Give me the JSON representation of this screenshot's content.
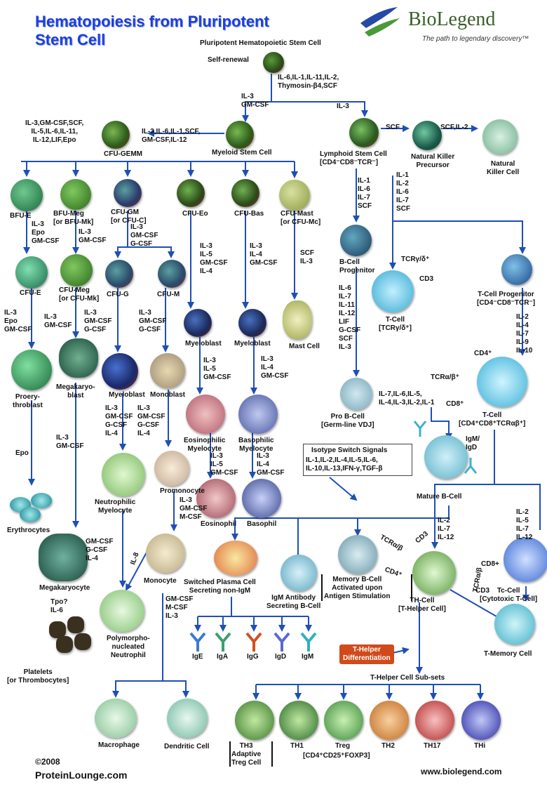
{
  "title": "Hematopoiesis from Pluripotent Stem Cell",
  "logo": {
    "name": "BioLegend",
    "tagline": "The path to legendary discovery™"
  },
  "footer": {
    "copyright": "©2008",
    "left": "ProteinLounge.com",
    "right": "www.biolegend.com"
  },
  "colors": {
    "arrow": "#1f4fb5",
    "title": "#1e3fd6"
  },
  "nodes": {
    "phsc": "Pluripotent Hematopoietic Stem Cell",
    "self_renewal": "Self-renewal",
    "cytokines_top": "IL-6,IL-1,IL-11,IL-2,\nThymosin-β4,SCF",
    "il3_gmcsf": "IL-3\nGM-CSF",
    "il3_right": "IL-3",
    "myeloid": "Myeloid Stem Cell",
    "myeloid_cyt": "IL-3,IL-6,IL-1,SCF,\nGM-CSF,IL-12",
    "cfugemm": "CFU-GEMM",
    "cfugemm_cyt": "IL-3,GM-CSF,SCF,\nIL-5,IL-6,IL-11,\nIL-12,LIF,Epo",
    "lymphoid": "Lymphoid Stem Cell\n[CD4⁻CD8⁻TCR⁻]",
    "scf": "SCF",
    "nk_precursor": "Natural Killer\nPrecursor",
    "scf_il2": "SCF,IL-2",
    "nk": "Natural\nKiller Cell",
    "bfue": "BFU-E",
    "bfue_cyt": "IL-3\nEpo\nGM-CSF",
    "bfumeg": "BFU-Meg\n[or BFU-Mk]",
    "bfumeg_cyt": "IL-3\nGM-CSF",
    "cfugm": "CFU-GM\n[or CFU-C]",
    "cfugm_cyt": "IL-3\nGM-CSF\nG-CSF",
    "cfueo": "CFU-Eo",
    "cfueo_cyt": "IL-3\nIL-5\nGM-CSF\nIL-4",
    "cfubas": "CFU-Bas",
    "cfubas_cyt": "IL-3\nIL-4\nGM-CSF",
    "cfumast": "CFU-Mast\n[or CFU-Mc]",
    "cfumast_cyt": "SCF\nIL-3",
    "lymph_cyt_left": "IL-1\nIL-6\nIL-7\nSCF",
    "lymph_cyt_right": "IL-1\nIL-2\nIL-6\nIL-7\nSCF",
    "cfue": "CFU-E",
    "cfue_cyt": "IL-3\nEpo\nGM-CSF",
    "cfumeg": "CFU-Meg\n[or CFU-Mk]",
    "cfumeg_cyt": "IL-3\nGM-CSF",
    "cfug": "CFU-G",
    "cfug_cyt": "IL-3\nGM-CSF\nG-CSF",
    "cfum": "CFU-M",
    "cfum_cyt": "IL-3\nGM-CSF\nG-CSF",
    "myeloblast_eo": "Myeloblast",
    "myeloblast_eo_cyt": "IL-3\nIL-5\nGM-CSF",
    "myeloblast_bas": "Myeloblast",
    "myeloblast_bas_cyt": "IL-3\nIL-4\nGM-CSF",
    "mast": "Mast Cell",
    "bcell_prog": "B-Cell\nProgenitor",
    "bcell_prog_cyt": "IL-6\nIL-7\nIL-11\nIL-12\nLIF\nG-CSF\nSCF\nIL-3",
    "tcr_gd_label": "TCRγ/δ⁺",
    "cd3": "CD3",
    "tcell_gd": "T-Cell\n[TCRγ/δ⁺]",
    "tcell_prog": "T-Cell Progenitor\n[CD4⁻CD8⁻TCR⁻]",
    "tcell_prog_cyt": "IL-2\nIL-4\nIL-7\nIL-9\nIL-10",
    "proery": "Proery-\nthroblast",
    "megablast": "Megakaryo-\nblast",
    "myeloblast_n": "Myeloblast",
    "myeloblast_n_cyt": "IL-3\nGM-CSF\nG-CSF\nIL-4",
    "monoblast": "Monoblast",
    "monoblast_cyt": "IL-3\nGM-CSF\nG-CSF\nIL-4",
    "eos_myelo": "Eosinophilic\nMyelocyte",
    "eos_myelo_cyt": "IL-3\nIL-5\nGM-CSF",
    "bas_myelo": "Basophilic\nMyelocyte",
    "bas_myelo_cyt": "IL-3\nIL-4\nGM-CSF",
    "probcell": "Pro B-Cell\n[Germ-line VDJ]",
    "probcell_cyt": "IL-7,IL-6,IL-5,\nIL-4,IL-3,IL-2,IL-1",
    "cd4p": "CD4⁺",
    "tcr_ab": "TCRα/β⁺",
    "cd8p": "CD8⁺",
    "tcell_ab": "T-Cell\n[CD4⁺CD8⁺TCRαβ⁺]",
    "epo": "Epo",
    "mega_cyt": "IL-3\nGM-CSF",
    "neut_myelo": "Neutrophilic\nMyelocyte",
    "promonocyte": "Promonocyte",
    "promono_cyt": "IL-3\nGM-CSF\nM-CSF",
    "eosinophil": "Eosinophil",
    "basophil": "Basophil",
    "isotype_title": "Isotype Switch Signals",
    "isotype_body": "IL-1,IL-2,IL-4,IL-5,IL-6,\nIL-10,IL-13,IFN-γ,TGF-β",
    "igm_igd": "IgM/\nIgD",
    "mature_b": "Mature B-Cell",
    "erythrocytes": "Erythrocytes",
    "neut_cyt": "GM-CSF\nG-CSF\nIL-4",
    "il8": "IL-8",
    "monocyte": "Monocyte",
    "plasma_nonigm": "Switched Plasma Cell\nSecreting non-IgM",
    "memory_b": "Memory B-Cell\nActivated upon\nAntigen Stimulation",
    "igm_secreting": "IgM Antibody\nSecreting B-Cell",
    "th_cyt": "IL-2\nIL-7\nIL-12",
    "tc_cyt": "IL-2\nIL-5\nIL-7\nIL-12",
    "tcr_ab2": "TCRα/β",
    "cd3b": "CD3",
    "cd4p2": "CD4⁺",
    "cd8p2": "CD8+",
    "tcr_ab3": "TCRα/β",
    "cd3c": "CD3",
    "thcell": "TH-Cell\n[T-Helper Cell]",
    "tccell": "Tc-Cell\n[Cytotoxic T-Cell]",
    "megakaryocyte": "Megakaryocyte",
    "tpo_cyt": "Tpo?\nIL-6",
    "mono_cyt": "GM-CSF\nM-CSF\nIL-3",
    "pmn": "Polymorpho-\nnucleated\nNeutrophil",
    "ige": "IgE",
    "iga": "IgA",
    "igg": "IgG",
    "igd": "IgD",
    "igm": "IgM",
    "th_diff": "T-Helper\nDifferentiation",
    "tmem": "T-Memory Cell",
    "th_subsets": "T-Helper Cell Sub-sets",
    "platelets": "Platelets\n[or Thrombocytes]",
    "macrophage": "Macrophage",
    "dendritic": "Dendritic Cell",
    "th3": "TH3\nAdaptive\nTreg Cell",
    "th1": "TH1",
    "treg": "Treg",
    "treg_sub": "[CD4⁺CD25⁺FOXP3]",
    "th2": "TH2",
    "th17": "TH17",
    "thi": "THi"
  }
}
